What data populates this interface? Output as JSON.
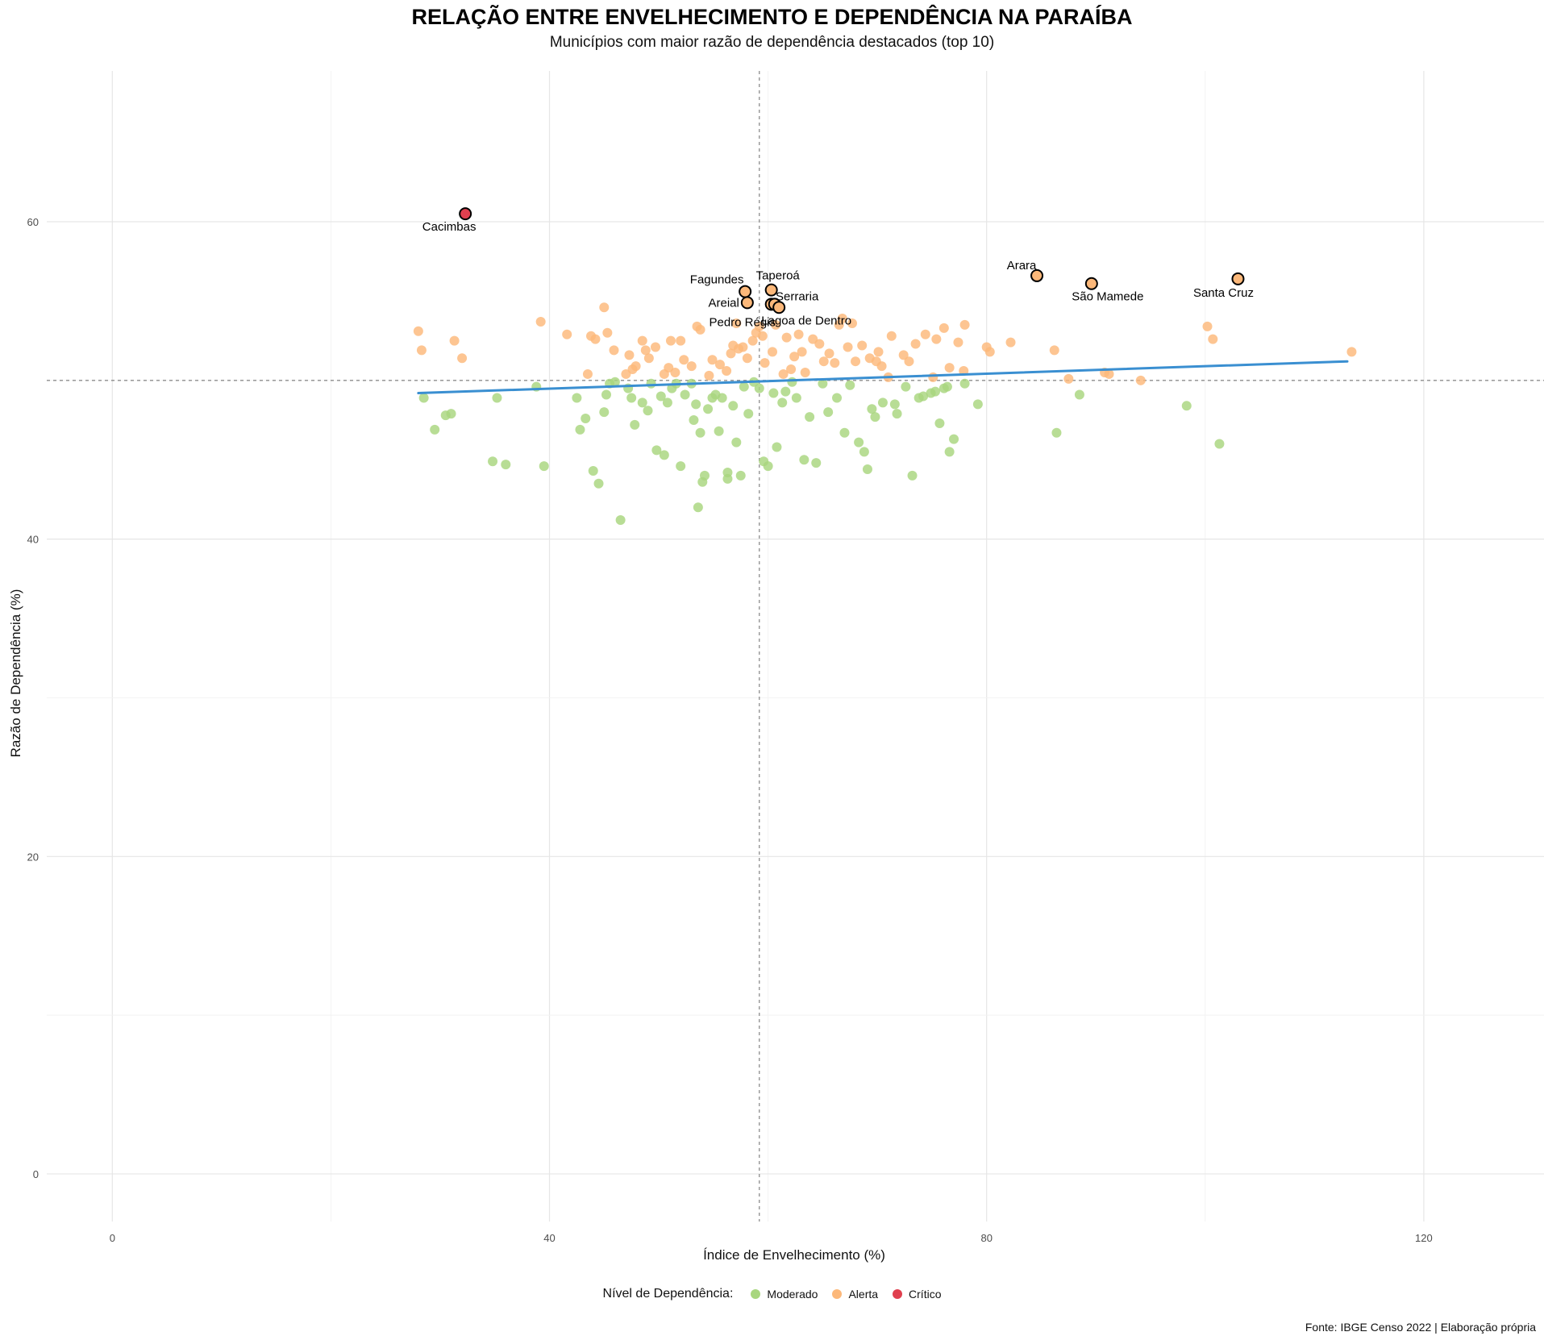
{
  "chart_data": {
    "type": "scatter",
    "title": "RELAÇÃO ENTRE ENVELHECIMENTO E DEPENDÊNCIA NA PARAÍBA",
    "subtitle": "Municípios com maior razão de dependência destacados (top 10)",
    "xlabel": "Índice de Envelhecimento (%)",
    "ylabel": "Razão de Dependência (%)",
    "xlim": [
      -6,
      131
    ],
    "ylim": [
      -3,
      69.5
    ],
    "xticks": [
      0,
      40,
      80,
      120
    ],
    "yticks": [
      0,
      20,
      40,
      60
    ],
    "grid": true,
    "caption": "Fonte: IBGE Censo 2022 | Elaboração própria",
    "reference_lines": {
      "vertical_x": 59.2,
      "horizontal_y": 50
    },
    "trend_line": {
      "x": [
        28,
        113
      ],
      "y": [
        49.2,
        51.2
      ],
      "color": "#3a8fd1"
    },
    "legend": {
      "title": "Nível de Dependência:",
      "position": "bottom",
      "items": [
        {
          "label": "Moderado",
          "color": "#a8d67e"
        },
        {
          "label": "Alerta",
          "color": "#fcb87a"
        },
        {
          "label": "Crítico",
          "color": "#e0404f"
        }
      ]
    },
    "series": [
      {
        "name": "Moderado",
        "color": "#a8d67e",
        "points": [
          [
            28.5,
            48.9
          ],
          [
            29.5,
            46.9
          ],
          [
            30.5,
            47.8
          ],
          [
            31,
            47.9
          ],
          [
            34.8,
            44.9
          ],
          [
            35.2,
            48.9
          ],
          [
            36,
            44.7
          ],
          [
            38.8,
            49.6
          ],
          [
            39.5,
            44.6
          ],
          [
            42.5,
            48.9
          ],
          [
            42.8,
            46.9
          ],
          [
            43.3,
            47.6
          ],
          [
            44,
            44.3
          ],
          [
            44.5,
            43.5
          ],
          [
            45,
            48
          ],
          [
            45.2,
            49.1
          ],
          [
            45.5,
            49.8
          ],
          [
            46,
            49.9
          ],
          [
            46.5,
            41.2
          ],
          [
            47.2,
            49.5
          ],
          [
            47.5,
            48.9
          ],
          [
            47.8,
            47.2
          ],
          [
            48.5,
            48.6
          ],
          [
            49,
            48.1
          ],
          [
            49.3,
            49.8
          ],
          [
            49.8,
            45.6
          ],
          [
            50.2,
            49
          ],
          [
            50.5,
            45.3
          ],
          [
            50.8,
            48.6
          ],
          [
            51.2,
            49.5
          ],
          [
            51.6,
            49.8
          ],
          [
            52,
            44.6
          ],
          [
            52.4,
            49.1
          ],
          [
            53,
            49.8
          ],
          [
            53.2,
            47.5
          ],
          [
            53.4,
            48.5
          ],
          [
            53.6,
            42
          ],
          [
            53.8,
            46.7
          ],
          [
            54,
            43.6
          ],
          [
            54.2,
            44
          ],
          [
            54.5,
            48.2
          ],
          [
            54.9,
            48.9
          ],
          [
            55.2,
            49.1
          ],
          [
            55.5,
            46.8
          ],
          [
            55.8,
            48.9
          ],
          [
            56.3,
            44.2
          ],
          [
            56.3,
            43.8
          ],
          [
            56.8,
            48.4
          ],
          [
            57.1,
            46.1
          ],
          [
            57.5,
            44
          ],
          [
            57.8,
            49.6
          ],
          [
            58.2,
            47.9
          ],
          [
            58.7,
            49.9
          ],
          [
            59.2,
            49.5
          ],
          [
            59.6,
            44.9
          ],
          [
            60,
            44.6
          ],
          [
            60.5,
            49.2
          ],
          [
            60.8,
            45.8
          ],
          [
            61.3,
            48.6
          ],
          [
            61.6,
            49.3
          ],
          [
            62.2,
            49.9
          ],
          [
            62.6,
            48.9
          ],
          [
            63.3,
            45
          ],
          [
            63.8,
            47.7
          ],
          [
            64.4,
            44.8
          ],
          [
            65,
            49.8
          ],
          [
            65.5,
            48
          ],
          [
            66.3,
            48.9
          ],
          [
            67,
            46.7
          ],
          [
            67.5,
            49.7
          ],
          [
            68.3,
            46.1
          ],
          [
            68.8,
            45.5
          ],
          [
            69.1,
            44.4
          ],
          [
            69.5,
            48.2
          ],
          [
            69.8,
            47.7
          ],
          [
            70.5,
            48.6
          ],
          [
            71.6,
            48.5
          ],
          [
            71.8,
            47.9
          ],
          [
            72.6,
            49.6
          ],
          [
            73.2,
            44
          ],
          [
            73.8,
            48.9
          ],
          [
            74.2,
            49
          ],
          [
            74.9,
            49.2
          ],
          [
            75.3,
            49.3
          ],
          [
            75.7,
            47.3
          ],
          [
            76.1,
            49.5
          ],
          [
            76.4,
            49.6
          ],
          [
            76.6,
            45.5
          ],
          [
            77,
            46.3
          ],
          [
            78,
            49.8
          ],
          [
            79.2,
            48.5
          ],
          [
            86.4,
            46.7
          ],
          [
            88.5,
            49.1
          ],
          [
            98.3,
            48.4
          ],
          [
            101.3,
            46
          ]
        ]
      },
      {
        "name": "Alerta",
        "color": "#fcb87a",
        "points": [
          [
            28,
            53.1
          ],
          [
            28.3,
            51.9
          ],
          [
            31.3,
            52.5
          ],
          [
            32,
            51.4
          ],
          [
            39.2,
            53.7
          ],
          [
            41.6,
            52.9
          ],
          [
            43.5,
            50.4
          ],
          [
            43.8,
            52.8
          ],
          [
            44.2,
            52.6
          ],
          [
            45,
            54.6
          ],
          [
            45.3,
            53
          ],
          [
            45.9,
            51.9
          ],
          [
            47,
            50.4
          ],
          [
            47.3,
            51.6
          ],
          [
            47.6,
            50.7
          ],
          [
            47.9,
            50.9
          ],
          [
            48.5,
            52.5
          ],
          [
            48.8,
            51.9
          ],
          [
            49.1,
            51.4
          ],
          [
            49.7,
            52.1
          ],
          [
            50.5,
            50.4
          ],
          [
            50.9,
            50.8
          ],
          [
            51.1,
            52.5
          ],
          [
            51.5,
            50.5
          ],
          [
            52,
            52.5
          ],
          [
            52.3,
            51.3
          ],
          [
            53,
            50.9
          ],
          [
            53.5,
            53.4
          ],
          [
            53.8,
            53.2
          ],
          [
            54.6,
            50.3
          ],
          [
            54.9,
            51.3
          ],
          [
            55.6,
            51
          ],
          [
            56.2,
            50.6
          ],
          [
            56.6,
            51.7
          ],
          [
            56.8,
            52.2
          ],
          [
            57.1,
            53.6
          ],
          [
            57.3,
            52
          ],
          [
            57.7,
            52.1
          ],
          [
            58.1,
            51.4
          ],
          [
            58.6,
            52.5
          ],
          [
            58.9,
            53
          ],
          [
            59.2,
            53.4
          ],
          [
            59.5,
            52.8
          ],
          [
            59.7,
            51.1
          ],
          [
            60.4,
            51.8
          ],
          [
            60.7,
            53.5
          ],
          [
            61.4,
            50.4
          ],
          [
            61.7,
            52.7
          ],
          [
            62.1,
            50.7
          ],
          [
            62.4,
            51.5
          ],
          [
            62.8,
            52.9
          ],
          [
            63.1,
            51.8
          ],
          [
            63.4,
            50.5
          ],
          [
            64.1,
            52.6
          ],
          [
            64.7,
            52.3
          ],
          [
            65.1,
            51.2
          ],
          [
            65.6,
            51.7
          ],
          [
            66.1,
            51.1
          ],
          [
            66.5,
            53.5
          ],
          [
            66.8,
            53.9
          ],
          [
            67.3,
            52.1
          ],
          [
            67.7,
            53.6
          ],
          [
            68,
            51.2
          ],
          [
            68.6,
            52.2
          ],
          [
            69.3,
            51.4
          ],
          [
            69.9,
            51.2
          ],
          [
            70.1,
            51.8
          ],
          [
            70.4,
            50.9
          ],
          [
            71,
            50.2
          ],
          [
            71.3,
            52.8
          ],
          [
            72.4,
            51.6
          ],
          [
            72.9,
            51.2
          ],
          [
            73.5,
            52.3
          ],
          [
            74.4,
            52.9
          ],
          [
            75.1,
            50.2
          ],
          [
            75.4,
            52.6
          ],
          [
            76.1,
            53.3
          ],
          [
            76.6,
            50.8
          ],
          [
            77.4,
            52.4
          ],
          [
            77.9,
            50.6
          ],
          [
            78,
            53.5
          ],
          [
            80,
            52.1
          ],
          [
            80.3,
            51.8
          ],
          [
            82.2,
            52.4
          ],
          [
            86.2,
            51.9
          ],
          [
            87.5,
            50.1
          ],
          [
            90.8,
            50.5
          ],
          [
            91.2,
            50.4
          ],
          [
            94.1,
            50
          ],
          [
            100.2,
            53.4
          ],
          [
            100.7,
            52.6
          ],
          [
            113.4,
            51.8
          ]
        ]
      },
      {
        "name": "Crítico",
        "color": "#e0404f",
        "points": [
          [
            32.3,
            60.5
          ]
        ]
      }
    ],
    "highlighted": [
      {
        "label": "Cacimbas",
        "x": 32.3,
        "y": 60.5,
        "color": "#e0404f"
      },
      {
        "label": "Arara",
        "x": 84.6,
        "y": 56.6,
        "color": "#fcb87a"
      },
      {
        "label": "São Mamede",
        "x": 89.6,
        "y": 56.1,
        "color": "#fcb87a"
      },
      {
        "label": "Santa Cruz",
        "x": 103,
        "y": 56.4,
        "color": "#fcb87a"
      },
      {
        "label": "Fagundes",
        "x": 57.9,
        "y": 55.6,
        "color": "#fcb87a"
      },
      {
        "label": "Taperoá",
        "x": 60.3,
        "y": 55.7,
        "color": "#fcb87a"
      },
      {
        "label": "Areial",
        "x": 58.1,
        "y": 54.9,
        "color": "#fcb87a"
      },
      {
        "label": "Serraria",
        "x": 60.3,
        "y": 54.8,
        "color": "#fcb87a"
      },
      {
        "label": "Pedro Régis",
        "x": 60.6,
        "y": 54.8,
        "color": "#fcb87a"
      },
      {
        "label": "Lagoa de Dentro",
        "x": 61,
        "y": 54.6,
        "color": "#fcb87a"
      }
    ]
  }
}
